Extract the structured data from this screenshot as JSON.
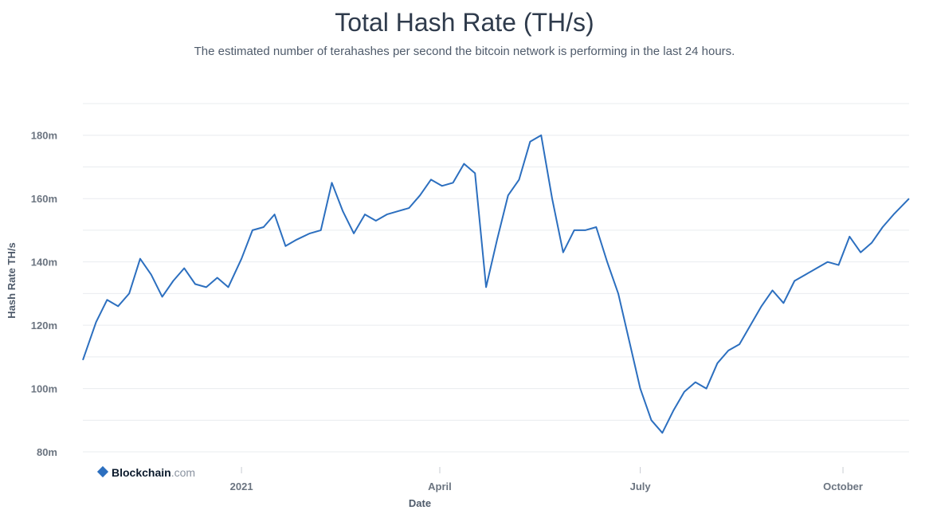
{
  "chart_data": {
    "type": "line",
    "title": "Total Hash Rate (TH/s)",
    "subtitle": "The estimated number of terahashes per second the bitcoin network is performing in the last 24 hours.",
    "xlabel": "Date",
    "ylabel": "Hash Rate TH/s",
    "x_tick_labels": [
      "2021",
      "April",
      "July",
      "October"
    ],
    "y_tick_labels": [
      "80m",
      "100m",
      "120m",
      "140m",
      "160m",
      "180m"
    ],
    "ylim": [
      78000000,
      190000000
    ],
    "xlim": [
      "2020-10-21",
      "2021-10-31"
    ],
    "grid": true,
    "legend": "none",
    "color": "#2c6fbf",
    "series": [
      {
        "x": [
          "2020-10-21",
          "2020-10-27",
          "2020-11-01",
          "2020-11-06",
          "2020-11-11",
          "2020-11-16",
          "2020-11-21",
          "2020-11-26",
          "2020-12-01",
          "2020-12-06",
          "2020-12-11",
          "2020-12-16",
          "2020-12-21",
          "2020-12-26",
          "2021-01-01",
          "2021-01-06",
          "2021-01-11",
          "2021-01-16",
          "2021-01-21",
          "2021-01-26",
          "2021-02-01",
          "2021-02-06",
          "2021-02-11",
          "2021-02-16",
          "2021-02-21",
          "2021-02-26",
          "2021-03-03",
          "2021-03-08",
          "2021-03-13",
          "2021-03-18",
          "2021-03-23",
          "2021-03-28",
          "2021-04-02",
          "2021-04-07",
          "2021-04-12",
          "2021-04-17",
          "2021-04-22",
          "2021-04-27",
          "2021-05-02",
          "2021-05-07",
          "2021-05-12",
          "2021-05-17",
          "2021-05-22",
          "2021-05-27",
          "2021-06-01",
          "2021-06-06",
          "2021-06-11",
          "2021-06-16",
          "2021-06-21",
          "2021-06-26",
          "2021-07-01",
          "2021-07-06",
          "2021-07-11",
          "2021-07-16",
          "2021-07-21",
          "2021-07-26",
          "2021-07-31",
          "2021-08-05",
          "2021-08-10",
          "2021-08-15",
          "2021-08-20",
          "2021-08-25",
          "2021-08-30",
          "2021-09-04",
          "2021-09-09",
          "2021-09-14",
          "2021-09-19",
          "2021-09-24",
          "2021-09-29",
          "2021-10-04",
          "2021-10-09",
          "2021-10-14",
          "2021-10-19",
          "2021-10-24",
          "2021-10-31"
        ],
        "values": [
          109000000,
          121000000,
          128000000,
          126000000,
          130000000,
          141000000,
          136000000,
          129000000,
          134000000,
          138000000,
          133000000,
          132000000,
          135000000,
          132000000,
          141000000,
          150000000,
          151000000,
          155000000,
          145000000,
          147000000,
          149000000,
          150000000,
          165000000,
          156000000,
          149000000,
          155000000,
          153000000,
          155000000,
          156000000,
          157000000,
          161000000,
          166000000,
          164000000,
          165000000,
          171000000,
          168000000,
          132000000,
          147000000,
          161000000,
          166000000,
          178000000,
          180000000,
          160000000,
          143000000,
          150000000,
          150000000,
          151000000,
          140000000,
          130000000,
          115000000,
          100000000,
          90000000,
          86000000,
          93000000,
          99000000,
          102000000,
          100000000,
          108000000,
          112000000,
          114000000,
          120000000,
          126000000,
          131000000,
          127000000,
          134000000,
          136000000,
          138000000,
          140000000,
          139000000,
          148000000,
          143000000,
          146000000,
          151000000,
          155000000,
          160000000
        ]
      }
    ]
  }
}
